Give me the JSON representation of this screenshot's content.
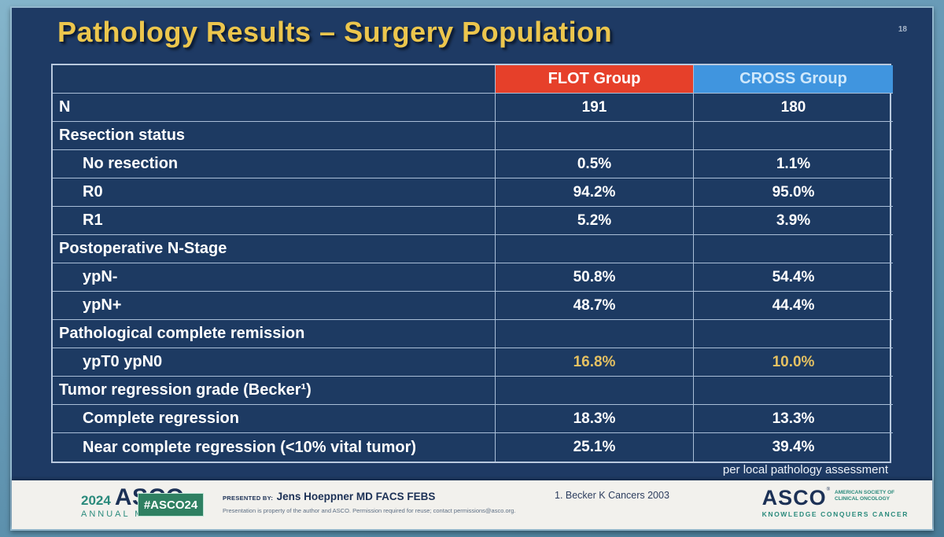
{
  "slide": {
    "title": "Pathology Results – Surgery Population",
    "number": "18",
    "footnote": "per local pathology assessment"
  },
  "table": {
    "columns": {
      "label": "",
      "flot": "FLOT Group",
      "cross": "CROSS Group"
    },
    "rows": [
      {
        "label": "N",
        "flot": "191",
        "cross": "180"
      },
      {
        "label": "Resection status",
        "flot": "",
        "cross": ""
      },
      {
        "label": "No resection",
        "flot": "0.5%",
        "cross": "1.1%"
      },
      {
        "label": "R0",
        "flot": "94.2%",
        "cross": "95.0%"
      },
      {
        "label": "R1",
        "flot": "5.2%",
        "cross": "3.9%"
      },
      {
        "label": "Postoperative N-Stage",
        "flot": "",
        "cross": ""
      },
      {
        "label": "ypN-",
        "flot": "50.8%",
        "cross": "54.4%"
      },
      {
        "label": "ypN+",
        "flot": "48.7%",
        "cross": "44.4%"
      },
      {
        "label": "Pathological complete remission",
        "flot": "",
        "cross": ""
      },
      {
        "label": "ypT0 ypN0",
        "flot": "16.8%",
        "cross": "10.0%"
      },
      {
        "label": "Tumor regression grade (Becker¹)",
        "flot": "",
        "cross": ""
      },
      {
        "label": "Complete regression",
        "flot": "18.3%",
        "cross": "13.3%"
      },
      {
        "label": "Near complete regression (<10% vital tumor)",
        "flot": "25.1%",
        "cross": "39.4%"
      }
    ]
  },
  "footer": {
    "meeting_year": "2024",
    "meeting_asco": "ASCO",
    "reg_mark": "®",
    "meeting_subtitle": "ANNUAL MEETING",
    "hashtag": "#ASCO24",
    "presented_by_label": "PRESENTED BY:",
    "presenter": "Jens Hoeppner MD FACS FEBS",
    "disclaimer": "Presentation is property of the author and ASCO. Permission required for reuse; contact permissions@asco.org.",
    "reference": "1. Becker K Cancers 2003",
    "logo_asco": "ASCO",
    "logo_society": "AMERICAN SOCIETY OF\nCLINICAL ONCOLOGY",
    "logo_tagline": "KNOWLEDGE CONQUERS CANCER"
  },
  "colors": {
    "flot_red": "#e6402a",
    "cross_blue": "#4095df",
    "highlight_gold": "#e5c162",
    "title_gold": "#ecc64d",
    "slide_navy": "#1e3a64",
    "frame_teal": "#6b9db9",
    "badge_green": "#2f8062",
    "asco_teal": "#2a8a7c",
    "asco_navy": "#1c3156"
  }
}
